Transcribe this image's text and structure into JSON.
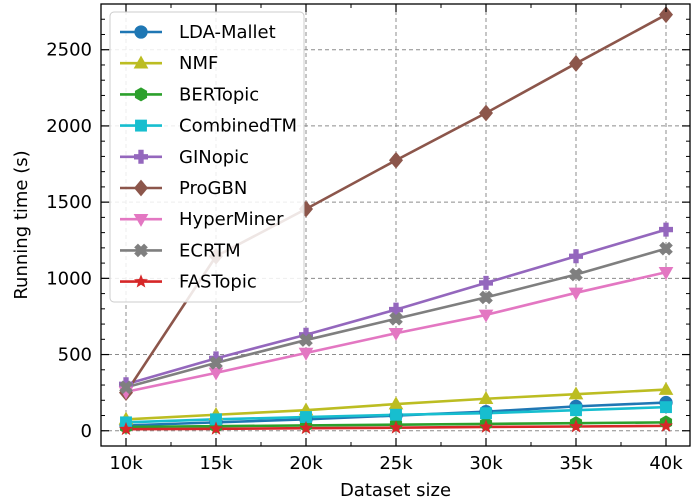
{
  "chart_data": {
    "type": "line",
    "title": "",
    "xlabel": "Dataset size",
    "ylabel": "Running time (s)",
    "categories": [
      "10k",
      "15k",
      "20k",
      "25k",
      "30k",
      "35k",
      "40k"
    ],
    "yticks": [
      "0",
      "500",
      "1000",
      "1500",
      "2000",
      "2500"
    ],
    "ytick_values": [
      0,
      500,
      1000,
      1500,
      2000,
      2500
    ],
    "ylim": [
      -100,
      2800
    ],
    "grid": true,
    "legend_position": "top-left",
    "series": [
      {
        "name": "LDA-Mallet",
        "color": "#1f77b4",
        "marker": "circle",
        "values": [
          35,
          55,
          75,
          100,
          125,
          160,
          185
        ]
      },
      {
        "name": "NMF",
        "color": "#bcbd22",
        "marker": "triangle-up",
        "values": [
          75,
          105,
          135,
          175,
          210,
          240,
          270
        ]
      },
      {
        "name": "BERTopic",
        "color": "#2ca02c",
        "marker": "hexagon",
        "values": [
          25,
          30,
          35,
          40,
          45,
          50,
          55
        ]
      },
      {
        "name": "CombinedTM",
        "color": "#17becf",
        "marker": "square",
        "values": [
          55,
          75,
          90,
          105,
          115,
          135,
          155
        ]
      },
      {
        "name": "GINopic",
        "color": "#9467bd",
        "marker": "plus",
        "values": [
          305,
          475,
          630,
          795,
          970,
          1145,
          1320
        ]
      },
      {
        "name": "ProGBN",
        "color": "#8c564b",
        "marker": "diamond",
        "values": [
          250,
          1145,
          1455,
          1775,
          2085,
          2410,
          2730
        ]
      },
      {
        "name": "HyperMiner",
        "color": "#e377c2",
        "marker": "triangle-down",
        "values": [
          255,
          380,
          510,
          640,
          760,
          905,
          1040
        ]
      },
      {
        "name": "ECRTM",
        "color": "#7f7f7f",
        "marker": "x-filled",
        "values": [
          285,
          445,
          595,
          735,
          875,
          1025,
          1195
        ]
      },
      {
        "name": "FASTopic",
        "color": "#d62728",
        "marker": "star",
        "values": [
          10,
          13,
          17,
          20,
          25,
          28,
          32
        ]
      }
    ]
  }
}
